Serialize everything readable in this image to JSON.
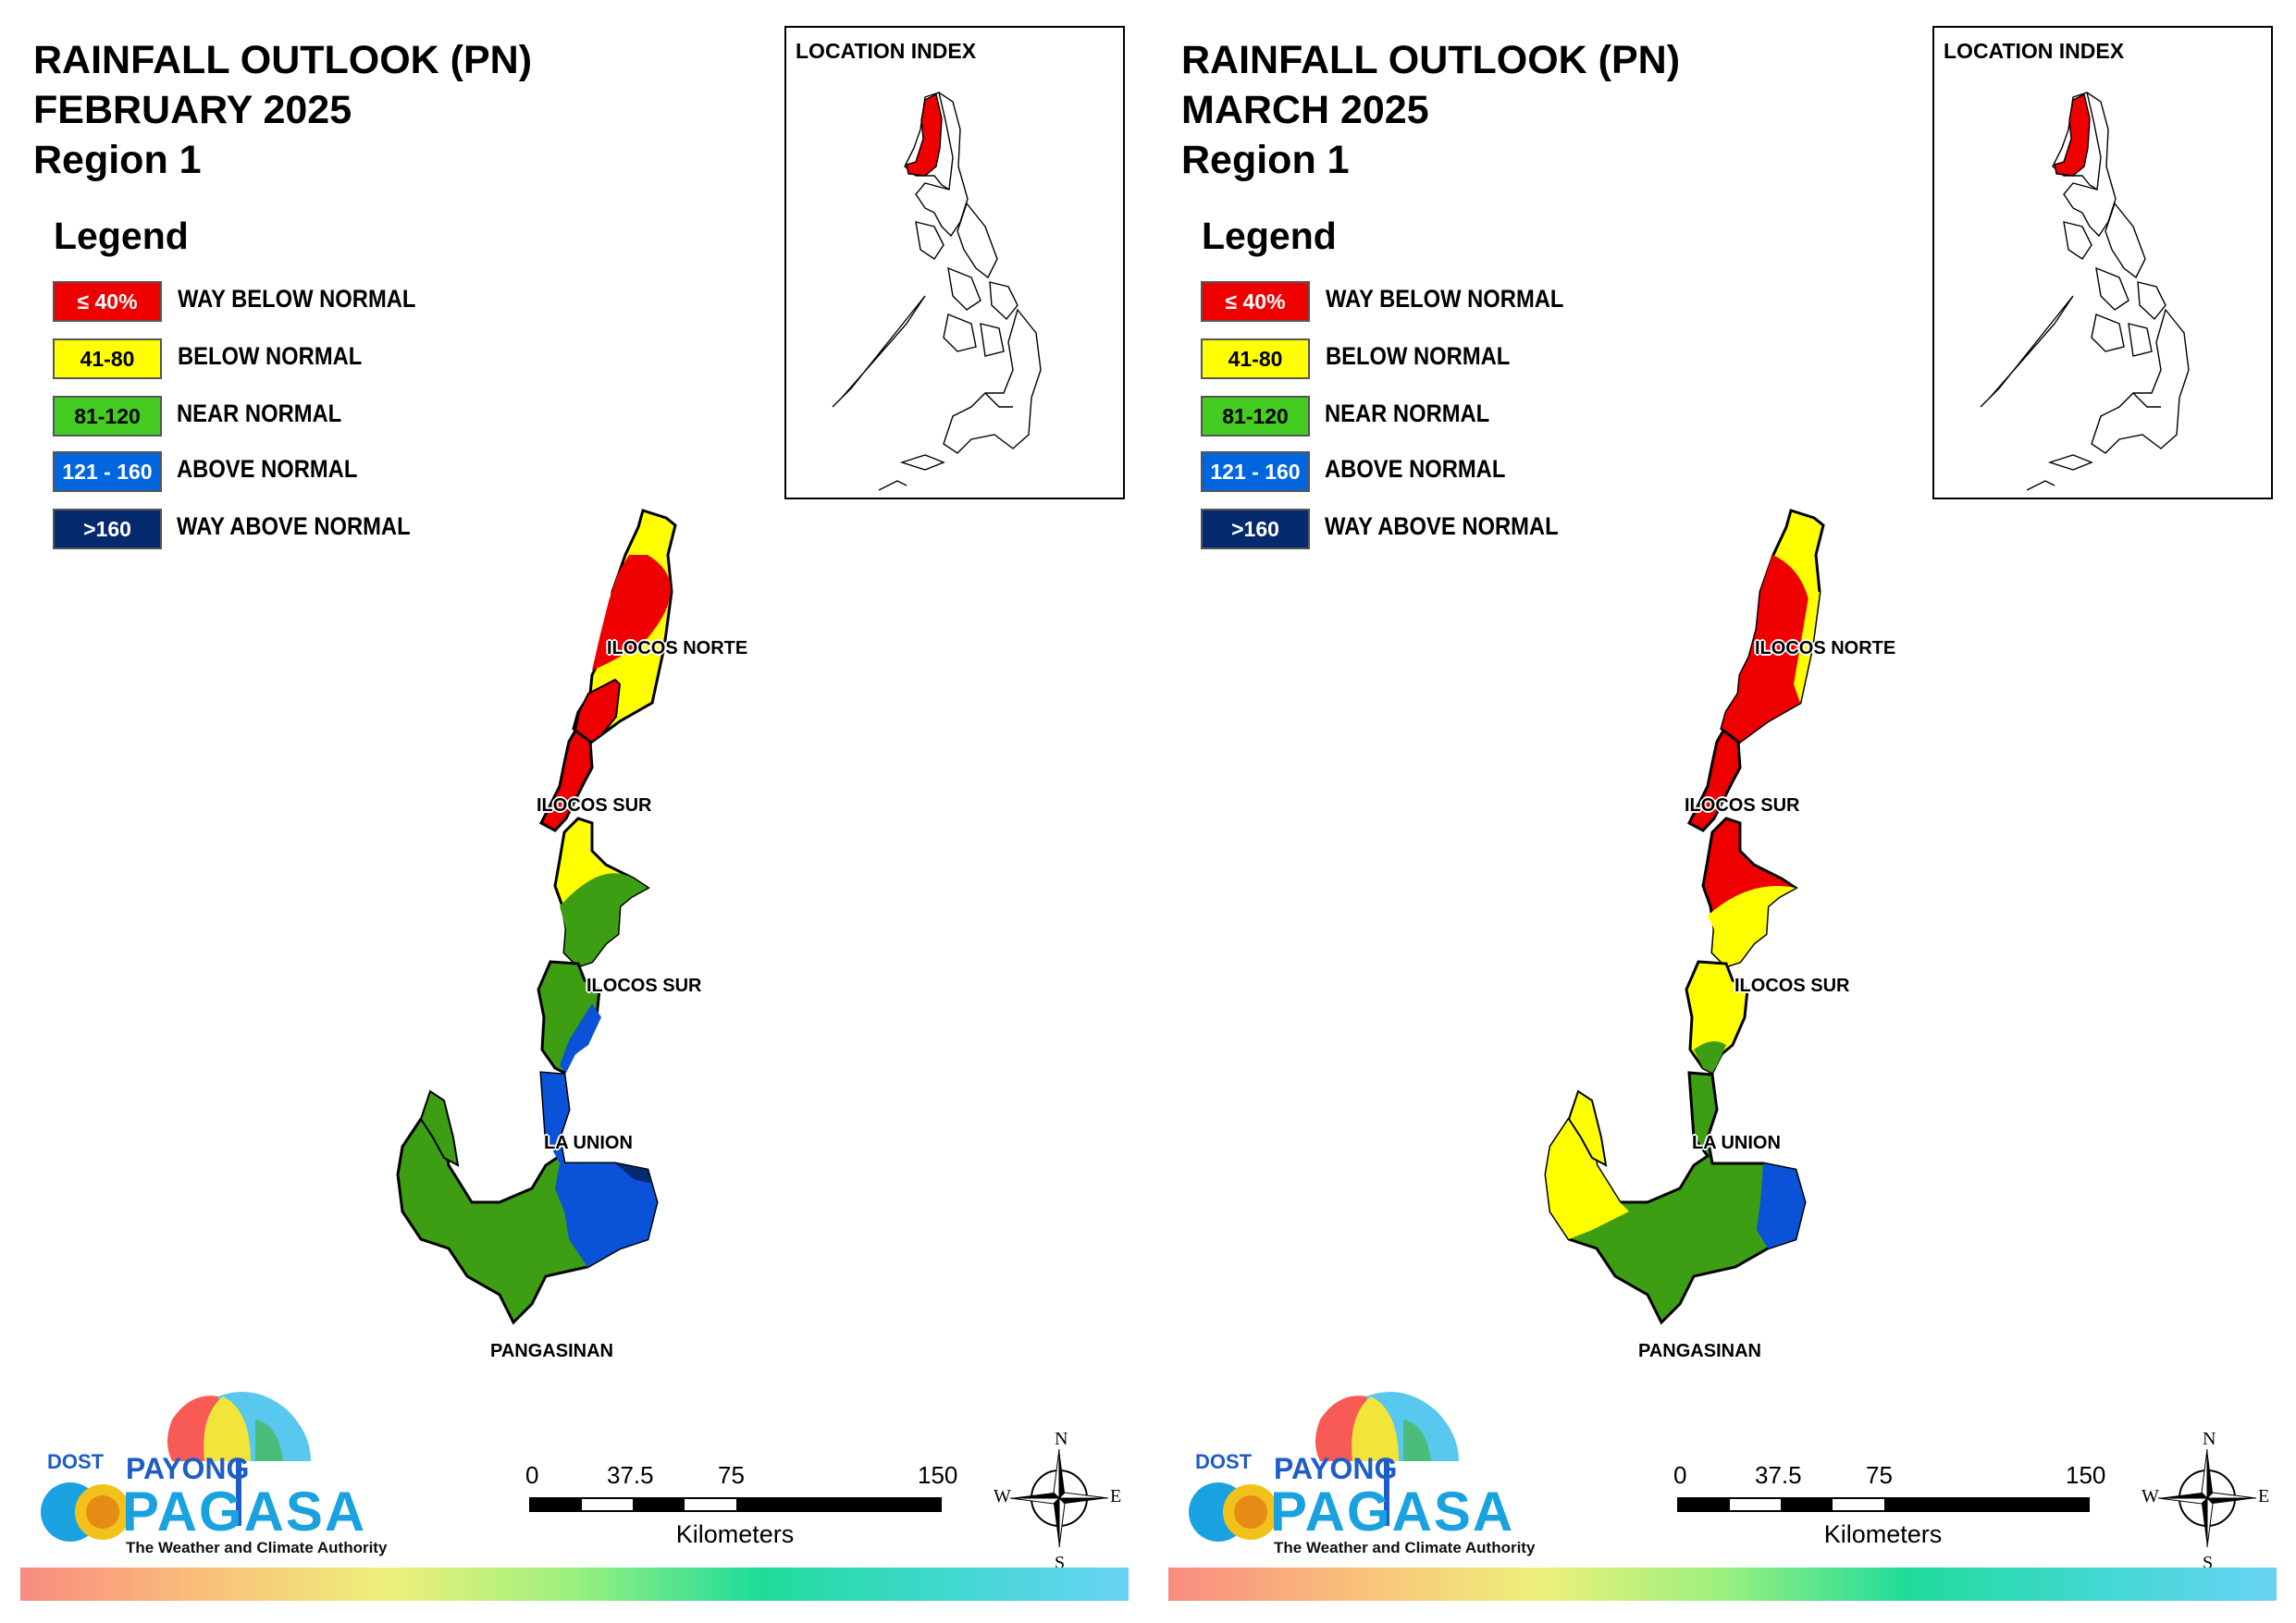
{
  "panels": [
    {
      "title_line1": "RAINFALL OUTLOOK (PN)",
      "title_line2": "FEBRUARY 2025",
      "title_line3": "Region 1",
      "legend_title": "Legend",
      "legend": [
        {
          "range": "≤ 40%",
          "label": "WAY BELOW NORMAL",
          "color": "#ee0000"
        },
        {
          "range": "41-80",
          "label": "BELOW NORMAL",
          "color": "#ffff00"
        },
        {
          "range": "81-120",
          "label": "NEAR NORMAL",
          "color": "#44cc22"
        },
        {
          "range": "121 - 160",
          "label": "ABOVE NORMAL",
          "color": "#0066dd"
        },
        {
          "range": ">160",
          "label": "WAY ABOVE NORMAL",
          "color": "#062a6e"
        }
      ],
      "inset_title": "LOCATION INDEX",
      "provinces": [
        "ILOCOS NORTE",
        "ILOCOS SUR",
        "ILOCOS SUR",
        "LA UNION",
        "PANGASINAN"
      ],
      "zone_colors": {
        "ilocos_norte": [
          "#ffff00",
          "#ee0000",
          "#ffff00"
        ],
        "ilocos_sur_north": "#ee0000",
        "ilocos_sur_south": [
          "#ffff00",
          "#3d9e14"
        ],
        "la_union": [
          "#3d9e14",
          "#0a52d8"
        ],
        "pangasinan": [
          "#3d9e14",
          "#0a52d8"
        ]
      },
      "scale": {
        "ticks": [
          "0",
          "37.5",
          "75",
          "150"
        ],
        "units": "Kilometers"
      },
      "compass": {
        "n": "N",
        "s": "S",
        "e": "E",
        "w": "W"
      },
      "logo": {
        "dost": "DOST",
        "payong": "PAYONG",
        "pagasa": "PAGASA",
        "tagline": "The Weather and Climate Authority"
      }
    },
    {
      "title_line1": "RAINFALL OUTLOOK (PN)",
      "title_line2": "MARCH 2025",
      "title_line3": "Region 1",
      "legend_title": "Legend",
      "legend": [
        {
          "range": "≤ 40%",
          "label": "WAY BELOW NORMAL",
          "color": "#ee0000"
        },
        {
          "range": "41-80",
          "label": "BELOW NORMAL",
          "color": "#ffff00"
        },
        {
          "range": "81-120",
          "label": "NEAR NORMAL",
          "color": "#44cc22"
        },
        {
          "range": "121 - 160",
          "label": "ABOVE NORMAL",
          "color": "#0066dd"
        },
        {
          "range": ">160",
          "label": "WAY ABOVE NORMAL",
          "color": "#062a6e"
        }
      ],
      "inset_title": "LOCATION INDEX",
      "provinces": [
        "ILOCOS NORTE",
        "ILOCOS SUR",
        "ILOCOS SUR",
        "LA UNION",
        "PANGASINAN"
      ],
      "zone_colors": {
        "ilocos_norte": [
          "#ffff00",
          "#ee0000",
          "#ffff00"
        ],
        "ilocos_sur_north": "#ee0000",
        "ilocos_sur_south": [
          "#ee0000",
          "#ffff00"
        ],
        "la_union": [
          "#ffff00",
          "#3d9e14"
        ],
        "pangasinan": [
          "#ffff00",
          "#3d9e14",
          "#0a52d8"
        ]
      },
      "scale": {
        "ticks": [
          "0",
          "37.5",
          "75",
          "150"
        ],
        "units": "Kilometers"
      },
      "compass": {
        "n": "N",
        "s": "S",
        "e": "E",
        "w": "W"
      },
      "logo": {
        "dost": "DOST",
        "payong": "PAYONG",
        "pagasa": "PAGASA",
        "tagline": "The Weather and Climate Authority"
      }
    }
  ]
}
